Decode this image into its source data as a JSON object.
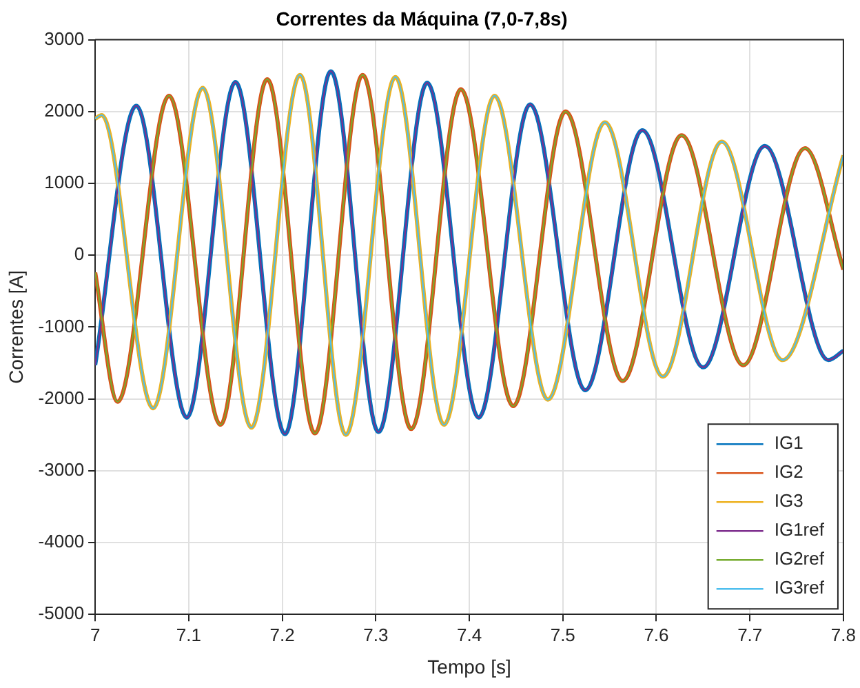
{
  "chart_data": {
    "type": "line",
    "title": "Correntes da Máquina (7,0-7,8s)",
    "xlabel": "Tempo [s]",
    "ylabel": "Correntes [A]",
    "xlim": [
      7,
      7.8
    ],
    "xticks": [
      7,
      7.1,
      7.2,
      7.3,
      7.4,
      7.5,
      7.6,
      7.7,
      7.8
    ],
    "ylim": [
      -5000,
      3000
    ],
    "yticks": [
      -5000,
      -4000,
      -3000,
      -2000,
      -1000,
      0,
      1000,
      2000,
      3000
    ],
    "grid": true,
    "legend": "bottom right",
    "marker": "none",
    "line_style": "solid",
    "series": [
      {
        "name": "IG1",
        "color": "#0072bd",
        "x": [
          7.0,
          7.044,
          7.098,
          7.15,
          7.203,
          7.252,
          7.303,
          7.355,
          7.41,
          7.465,
          7.524,
          7.585,
          7.65,
          7.716,
          7.784,
          7.8
        ],
        "values": [
          -1530,
          2080,
          -2260,
          2410,
          -2490,
          2560,
          -2460,
          2400,
          -2260,
          2100,
          -1880,
          1740,
          -1560,
          1520,
          -1460,
          -1330
        ]
      },
      {
        "name": "IG2",
        "color": "#d95319",
        "x": [
          7.0,
          7.024,
          7.079,
          7.134,
          7.184,
          7.235,
          7.286,
          7.338,
          7.391,
          7.447,
          7.503,
          7.564,
          7.627,
          7.693,
          7.759,
          7.8
        ],
        "values": [
          -240,
          -2040,
          2220,
          -2360,
          2450,
          -2480,
          2510,
          -2420,
          2310,
          -2100,
          2000,
          -1750,
          1670,
          -1530,
          1490,
          -200
        ]
      },
      {
        "name": "IG3",
        "color": "#edb120",
        "x": [
          7.0,
          7.007,
          7.062,
          7.115,
          7.167,
          7.219,
          7.268,
          7.321,
          7.373,
          7.427,
          7.484,
          7.545,
          7.607,
          7.67,
          7.735,
          7.8
        ],
        "values": [
          1900,
          1950,
          -2130,
          2330,
          -2400,
          2510,
          -2500,
          2480,
          -2360,
          2220,
          -2010,
          1850,
          -1690,
          1580,
          -1460,
          1390
        ]
      },
      {
        "name": "IG1ref",
        "color": "#7e2f8e",
        "x": [
          7.0,
          7.044,
          7.098,
          7.15,
          7.203,
          7.252,
          7.303,
          7.355,
          7.41,
          7.465,
          7.524,
          7.585,
          7.65,
          7.716,
          7.784,
          7.8
        ],
        "values": [
          -1530,
          2080,
          -2260,
          2410,
          -2490,
          2560,
          -2460,
          2400,
          -2260,
          2100,
          -1880,
          1740,
          -1560,
          1520,
          -1460,
          -1330
        ]
      },
      {
        "name": "IG2ref",
        "color": "#77ac30",
        "x": [
          7.0,
          7.024,
          7.079,
          7.134,
          7.184,
          7.235,
          7.286,
          7.338,
          7.391,
          7.447,
          7.503,
          7.564,
          7.627,
          7.693,
          7.759,
          7.8
        ],
        "values": [
          -240,
          -2040,
          2220,
          -2360,
          2450,
          -2480,
          2510,
          -2420,
          2310,
          -2100,
          2000,
          -1750,
          1670,
          -1530,
          1490,
          -200
        ]
      },
      {
        "name": "IG3ref",
        "color": "#4dbeee",
        "x": [
          7.0,
          7.007,
          7.062,
          7.115,
          7.167,
          7.219,
          7.268,
          7.321,
          7.373,
          7.427,
          7.484,
          7.545,
          7.607,
          7.67,
          7.735,
          7.8
        ],
        "values": [
          1900,
          1950,
          -2130,
          2330,
          -2400,
          2510,
          -2500,
          2480,
          -2360,
          2220,
          -2010,
          1850,
          -1690,
          1580,
          -1460,
          1390
        ]
      }
    ]
  }
}
